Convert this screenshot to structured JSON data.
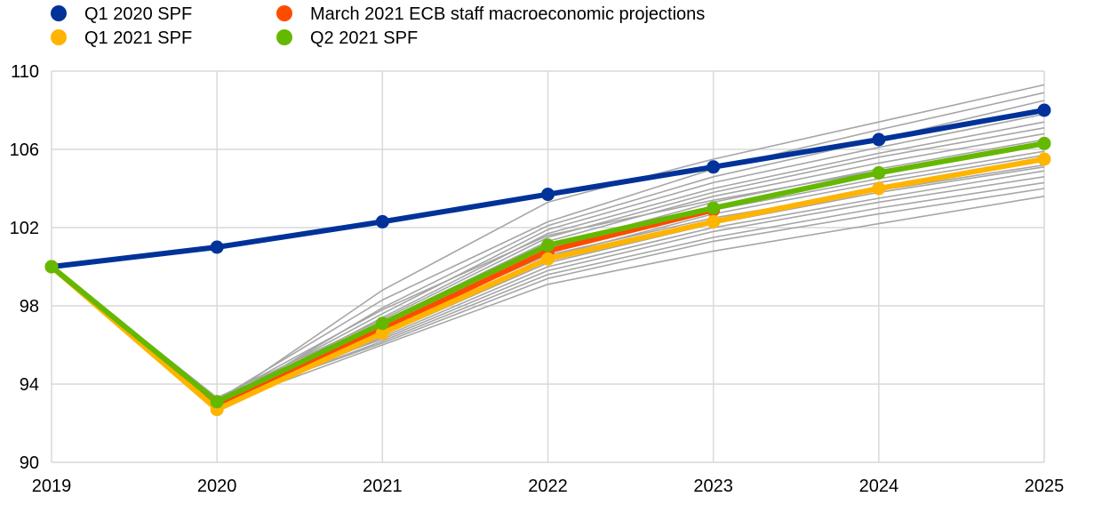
{
  "chart_data": {
    "type": "line",
    "title": "",
    "xlabel": "",
    "ylabel": "",
    "x": [
      "2019",
      "2020",
      "2021",
      "2022",
      "2023",
      "2024",
      "2025"
    ],
    "ylim": [
      90,
      110
    ],
    "yticks": [
      90,
      94,
      98,
      102,
      106,
      110
    ],
    "grid": true,
    "legend_position": "top-left",
    "series": [
      {
        "name": "Q1 2020 SPF",
        "color": "#003299",
        "values": [
          100,
          101.0,
          102.3,
          103.7,
          105.1,
          106.5,
          108.0
        ]
      },
      {
        "name": "March 2021 ECB staff macroeconomic projections",
        "color": "#ff4b00",
        "values": [
          100,
          93.0,
          96.8,
          100.8,
          102.9,
          null,
          null
        ]
      },
      {
        "name": "Q1 2021 SPF",
        "color": "#ffb400",
        "values": [
          100,
          92.7,
          96.6,
          100.4,
          102.3,
          104.0,
          105.5
        ]
      },
      {
        "name": "Q2 2021 SPF",
        "color": "#65b800",
        "values": [
          100,
          93.1,
          97.1,
          101.1,
          103.0,
          104.8,
          106.3
        ]
      }
    ],
    "individual_forecasts": {
      "color": "#a6a6a6",
      "series": [
        [
          100,
          93.0,
          98.8,
          103.3,
          105.5,
          107.4,
          109.3
        ],
        [
          100,
          93.2,
          98.3,
          102.3,
          105.0,
          107.0,
          108.9
        ],
        [
          100,
          92.9,
          97.9,
          102.1,
          104.6,
          106.5,
          108.5
        ],
        [
          100,
          93.1,
          97.6,
          101.9,
          104.3,
          106.1,
          107.8
        ],
        [
          100,
          93.0,
          97.4,
          101.7,
          104.0,
          105.8,
          107.4
        ],
        [
          100,
          93.3,
          97.3,
          101.5,
          103.8,
          105.6,
          107.1
        ],
        [
          100,
          92.8,
          97.2,
          101.3,
          103.6,
          105.3,
          106.8
        ],
        [
          100,
          93.1,
          97.0,
          101.0,
          103.3,
          105.0,
          106.5
        ],
        [
          100,
          93.0,
          96.9,
          100.9,
          103.1,
          104.8,
          106.2
        ],
        [
          100,
          93.2,
          96.8,
          100.7,
          102.9,
          104.5,
          105.9
        ],
        [
          100,
          92.9,
          96.7,
          100.5,
          102.7,
          104.3,
          105.7
        ],
        [
          100,
          93.1,
          96.6,
          100.3,
          102.4,
          104.1,
          105.4
        ],
        [
          100,
          93.0,
          96.5,
          100.2,
          102.2,
          103.8,
          105.1
        ],
        [
          100,
          92.8,
          96.4,
          100.0,
          102.0,
          103.5,
          104.9
        ],
        [
          100,
          93.3,
          96.3,
          99.8,
          101.8,
          103.3,
          104.6
        ],
        [
          100,
          93.0,
          96.2,
          99.6,
          101.5,
          103.0,
          104.3
        ],
        [
          100,
          93.1,
          96.1,
          99.4,
          101.3,
          102.7,
          104.0
        ],
        [
          100,
          92.9,
          96.0,
          99.1,
          100.8,
          102.2,
          103.6
        ],
        [
          100,
          93.2,
          97.8,
          101.6,
          103.4,
          104.9,
          106.4
        ],
        [
          100,
          93.0,
          96.9,
          100.6,
          102.5,
          103.9,
          105.2
        ]
      ]
    }
  }
}
